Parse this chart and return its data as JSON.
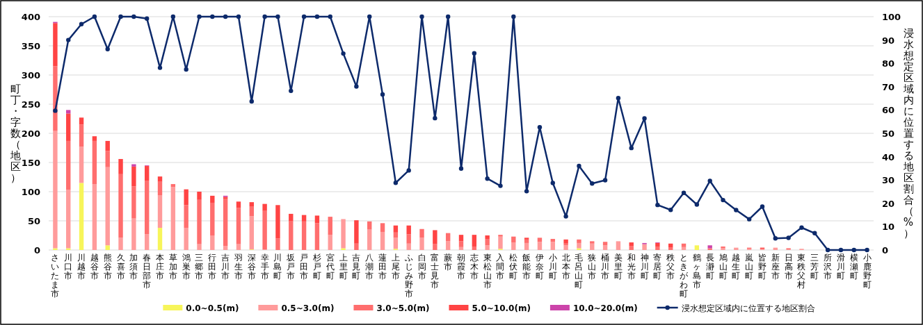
{
  "chart_data": {
    "type": "bar",
    "stacked": true,
    "grid": "y",
    "legend": "bottom",
    "ylabel": "町丁・字数（地区）",
    "y2label": "浸水想定区域内に位置する地区割合（%）",
    "ylim": [
      0,
      400
    ],
    "yticks": [
      0,
      50,
      100,
      150,
      200,
      250,
      300,
      350,
      400
    ],
    "y2lim": [
      0,
      100
    ],
    "y2ticks": [
      0,
      10,
      20,
      30,
      40,
      50,
      60,
      70,
      80,
      90,
      100
    ],
    "categories": [
      "さいたま市",
      "川口市",
      "川越市",
      "越谷市",
      "熊谷市",
      "久喜市",
      "加須市",
      "春日部市",
      "本庄市",
      "草加市",
      "鴻巣市",
      "三郷市",
      "行田市",
      "吉川市",
      "羽生市",
      "深谷市",
      "幸手市",
      "川島町",
      "坂戸市",
      "戸田市",
      "杉戸町",
      "宮代町",
      "上里町",
      "吉見町",
      "八潮市",
      "蓮田市",
      "上尾市",
      "ふじみ野市",
      "白岡市",
      "富士見市",
      "蕨市",
      "朝霞市",
      "志木市",
      "東松山市",
      "入間市",
      "松伏町",
      "飯能市",
      "伊奈町",
      "小川町",
      "北本市",
      "毛呂山町",
      "狭山市",
      "桶川市",
      "美里町",
      "和光市",
      "神川町",
      "寄居町",
      "秩父市",
      "ときがわ町",
      "鶴ヶ島市",
      "長瀞町",
      "鳩山町",
      "越生町",
      "嵐山町",
      "皆野町",
      "新座市",
      "日高市",
      "東秩父村",
      "三芳町",
      "所沢市",
      "滑川町",
      "横瀬町",
      "小鹿野町"
    ],
    "series": [
      {
        "name": "0.0~0.5(m)",
        "color": "#f7f55a",
        "values": [
          3,
          3,
          115,
          0,
          8,
          0,
          0,
          0,
          38,
          0,
          0,
          0,
          0,
          0,
          0,
          1,
          0,
          0,
          0,
          0,
          0,
          0,
          3,
          0,
          0,
          0,
          2,
          0,
          0,
          0,
          0,
          0,
          0,
          0,
          2,
          0,
          0,
          0,
          0,
          0,
          3,
          0,
          0,
          0,
          0,
          0,
          0,
          0,
          0,
          8,
          0,
          0,
          0,
          0,
          0,
          0,
          0,
          0,
          0,
          0,
          0,
          0,
          0
        ]
      },
      {
        "name": "0.5~3.0(m)",
        "color": "#ff9b9b",
        "values": [
          201,
          100,
          62,
          113,
          134,
          21,
          54,
          27,
          56,
          108,
          38,
          10,
          25,
          7,
          10,
          57,
          1,
          0,
          0,
          0,
          0,
          26,
          50,
          0,
          35,
          31,
          19,
          11,
          21,
          0,
          15,
          5,
          0,
          8,
          21,
          13,
          12,
          14,
          14,
          8,
          9,
          11,
          8,
          15,
          0,
          10,
          0,
          0,
          5,
          0,
          0,
          3,
          4,
          2,
          2,
          4,
          1,
          2,
          0,
          0,
          0,
          0,
          0
        ]
      },
      {
        "name": "3.0~5.0(m)",
        "color": "#ff6e6e",
        "values": [
          111,
          84,
          38,
          74,
          28,
          109,
          55,
          92,
          23,
          5,
          39,
          76,
          56,
          81,
          62,
          17,
          66,
          20,
          50,
          49,
          46,
          31,
          0,
          11,
          14,
          15,
          9,
          16,
          15,
          10,
          14,
          10,
          6,
          11,
          3,
          10,
          6,
          7,
          5,
          3,
          6,
          4,
          6,
          0,
          7,
          0,
          6,
          4,
          6,
          0,
          3,
          3,
          0,
          2,
          0,
          0,
          2,
          0,
          0,
          0,
          0,
          0,
          0
        ]
      },
      {
        "name": "5.0~10.0(m)",
        "color": "#ff4444",
        "values": [
          74,
          47,
          12,
          8,
          17,
          26,
          34,
          25,
          9,
          0,
          27,
          14,
          12,
          3,
          11,
          7,
          12,
          57,
          12,
          11,
          13,
          0,
          0,
          40,
          0,
          0,
          12,
          15,
          0,
          24,
          0,
          11,
          20,
          6,
          0,
          0,
          3,
          0,
          0,
          7,
          0,
          0,
          0,
          0,
          6,
          0,
          6,
          7,
          0,
          0,
          0,
          0,
          0,
          0,
          2,
          0,
          0,
          0,
          0,
          0,
          0,
          0,
          0
        ]
      },
      {
        "name": "10.0~20.0(m)",
        "color": "#cc44aa",
        "values": [
          2,
          6,
          0,
          0,
          0,
          0,
          4,
          1,
          0,
          0,
          0,
          0,
          0,
          2,
          0,
          0,
          0,
          0,
          0,
          0,
          0,
          0,
          0,
          0,
          0,
          0,
          0,
          0,
          0,
          0,
          0,
          0,
          0,
          0,
          0,
          0,
          0,
          0,
          0,
          0,
          0,
          0,
          0,
          0,
          0,
          2,
          1,
          0,
          0,
          0,
          5,
          0,
          0,
          0,
          0,
          0,
          0,
          0,
          0,
          0,
          0,
          0,
          0
        ]
      },
      {
        "name": "浸水想定区域内に位置する地区割合",
        "type": "line",
        "axis": "y2",
        "marker": "circle",
        "color": "#0d2a6b",
        "values": [
          59.7,
          90,
          96.8,
          100,
          86.1,
          100,
          100,
          99.2,
          78.1,
          100,
          77.4,
          100,
          100,
          100,
          100,
          63.7,
          100,
          100,
          68.2,
          100,
          100,
          100,
          84.2,
          70.1,
          100,
          66.7,
          28.8,
          34.1,
          100,
          56.5,
          100,
          34.9,
          84.3,
          30.6,
          27.5,
          100,
          25.2,
          52.6,
          28.7,
          14.4,
          36,
          28.5,
          29.9,
          65.1,
          43.7,
          56.4,
          19.3,
          17.2,
          24.5,
          19.5,
          29.6,
          21.4,
          17.1,
          13.2,
          18.6,
          5,
          5.2,
          9.6,
          7.2,
          0,
          0,
          0,
          0
        ]
      }
    ]
  }
}
